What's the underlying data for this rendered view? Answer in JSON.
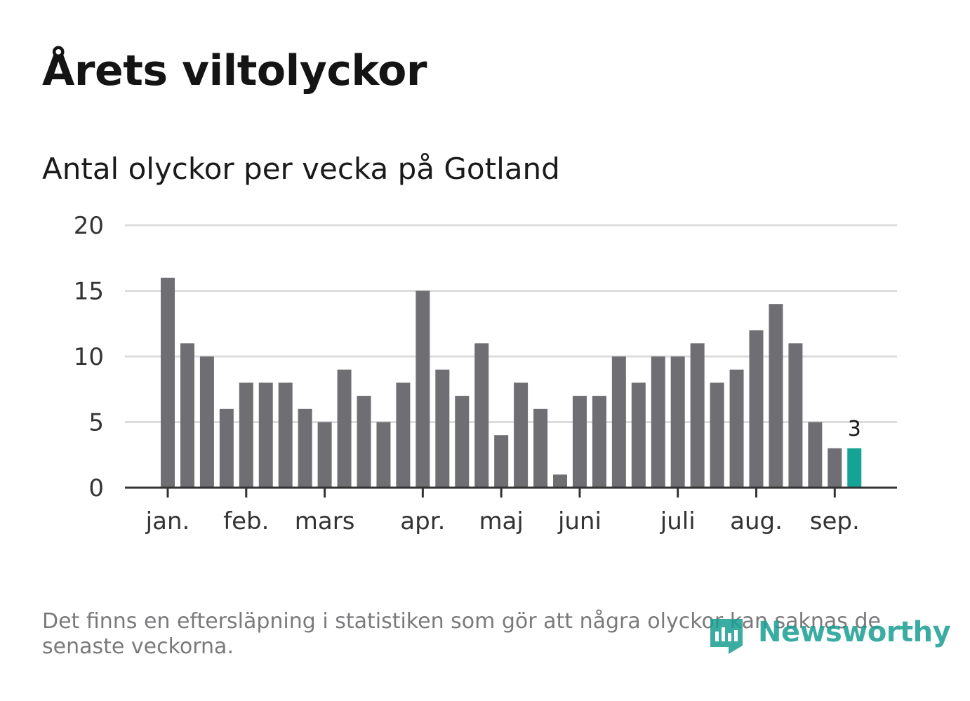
{
  "title": "Årets viltolyckor",
  "subtitle": "Antal olyckor per vecka på Gotland",
  "footnote": "Det finns en eftersläpning i statistiken som gör att några olyckor kan saknas de senaste veckorna.",
  "logo": {
    "text": "Newsworthy",
    "icon": "newsworthy-logo-icon",
    "color": "#1a9e92"
  },
  "chart_data": {
    "type": "bar",
    "values": [
      16,
      11,
      10,
      6,
      8,
      8,
      8,
      6,
      5,
      9,
      7,
      5,
      8,
      15,
      9,
      7,
      11,
      4,
      8,
      6,
      1,
      7,
      7,
      10,
      8,
      10,
      10,
      11,
      8,
      9,
      12,
      14,
      11,
      5,
      3,
      3
    ],
    "ylim": [
      0,
      20
    ],
    "yticks": [
      0,
      5,
      10,
      15,
      20
    ],
    "month_ticks": [
      {
        "label": "jan.",
        "bar": 0.5
      },
      {
        "label": "feb.",
        "bar": 4.5
      },
      {
        "label": "mars",
        "bar": 8.5
      },
      {
        "label": "apr.",
        "bar": 13.5
      },
      {
        "label": "maj",
        "bar": 17.5
      },
      {
        "label": "juni",
        "bar": 21.5
      },
      {
        "label": "juli",
        "bar": 26.5
      },
      {
        "label": "aug.",
        "bar": 30.5
      },
      {
        "label": "sep.",
        "bar": 34.5
      }
    ],
    "highlight_index": 35,
    "highlight_label": "3",
    "colors": {
      "bar": "#6e6e73",
      "highlight": "#14a394",
      "grid": "#dcdcdc",
      "axis": "#333333"
    },
    "grid": true
  }
}
